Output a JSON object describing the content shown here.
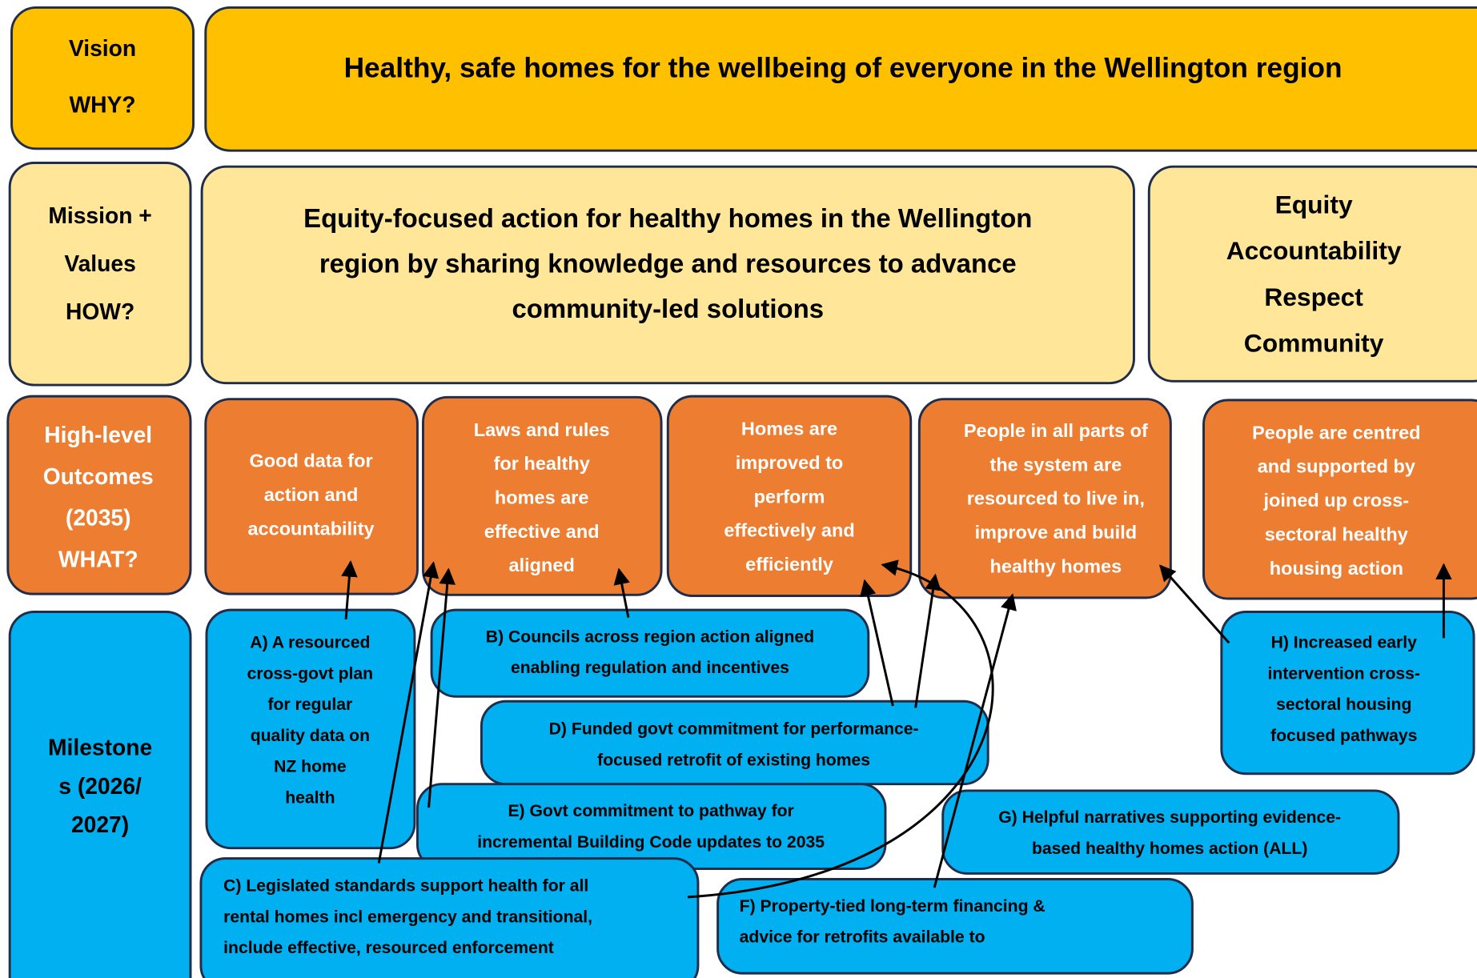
{
  "vision": {
    "label": [
      "Vision",
      "WHY?"
    ],
    "statement": "Healthy, safe homes for the wellbeing of everyone in the Wellington region"
  },
  "mission": {
    "label": [
      "Mission +",
      "Values",
      "HOW?"
    ],
    "statement": [
      "Equity-focused action for healthy homes in the Wellington",
      "region by sharing knowledge and resources to advance",
      "community-led solutions"
    ],
    "values": [
      "Equity",
      "Accountability",
      "Respect",
      "Community"
    ]
  },
  "outcomes": {
    "label": [
      "High-level",
      "Outcomes",
      "(2035)",
      "WHAT?"
    ],
    "items": [
      [
        "Good  data for",
        "action and",
        "accountability"
      ],
      [
        "Laws and rules",
        "for healthy",
        "homes are",
        "effective and",
        "aligned"
      ],
      [
        "Homes are",
        "improved to",
        "perform",
        "effectively and",
        "efficiently"
      ],
      [
        "People in all parts of",
        "the system are",
        "resourced to live in,",
        "improve and build",
        "healthy homes"
      ],
      [
        "People are centred",
        "and supported by",
        "joined up cross-",
        "sectoral healthy",
        "housing action"
      ]
    ]
  },
  "milestones": {
    "label": [
      "Milestone",
      "s (2026/",
      "2027)"
    ],
    "items": [
      [
        "A) A resourced",
        "cross-govt plan",
        "for regular",
        "quality data on",
        "NZ home",
        "health"
      ],
      [
        "B) Councils across region action aligned",
        "enabling regulation and incentives"
      ],
      [
        "C) Legislated standards support health for all",
        "rental homes incl emergency and transitional,",
        "include effective, resourced enforcement"
      ],
      [
        "D) Funded govt commitment for performance-",
        "focused retrofit of existing homes"
      ],
      [
        "E) Govt commitment to pathway for",
        "incremental Building Code updates to 2035"
      ],
      [
        "F) Property-tied long-term financing &",
        "advice for retrofits available to"
      ],
      [
        "G) Helpful narratives supporting evidence-",
        "based healthy homes action (ALL)"
      ],
      [
        "H) Increased early",
        "intervention  cross-",
        "sectoral housing",
        "focused pathways"
      ]
    ]
  }
}
